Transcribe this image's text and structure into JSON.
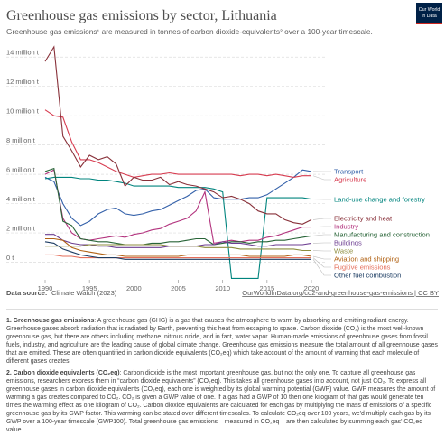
{
  "chart_data": {
    "type": "line",
    "title": "Greenhouse gas emissions by sector, Lithuania",
    "subtitle": "Greenhouse gas emissions¹ are measured in tonnes of carbon dioxide-equivalents² over a 100-year timescale.",
    "x": [
      1990,
      1991,
      1992,
      1993,
      1994,
      1995,
      1996,
      1997,
      1998,
      1999,
      2000,
      2001,
      2002,
      2003,
      2004,
      2005,
      2006,
      2007,
      2008,
      2009,
      2010,
      2011,
      2012,
      2013,
      2014,
      2015,
      2016,
      2017,
      2018,
      2019,
      2020
    ],
    "xlim": [
      1990,
      2020
    ],
    "xticks": [
      1990,
      1995,
      2000,
      2005,
      2010,
      2015,
      2020
    ],
    "ylim": [
      -1200000,
      15000000
    ],
    "yticks": [
      {
        "value": 0,
        "label": "0 t"
      },
      {
        "value": 2000000,
        "label": "2 million t"
      },
      {
        "value": 4000000,
        "label": "4 million t"
      },
      {
        "value": 6000000,
        "label": "6 million t"
      },
      {
        "value": 8000000,
        "label": "8 million t"
      },
      {
        "value": 10000000,
        "label": "10 million t"
      },
      {
        "value": 12000000,
        "label": "12 million t"
      },
      {
        "value": 14000000,
        "label": "14 million t"
      }
    ],
    "grid": true,
    "series": [
      {
        "name": "Transport",
        "color": "#3360a9",
        "values": [
          5800000,
          5500000,
          4000000,
          3000000,
          2500000,
          2800000,
          3300000,
          3600000,
          3700000,
          3300000,
          3200000,
          3300000,
          3500000,
          3600000,
          3900000,
          4200000,
          4500000,
          4900000,
          5000000,
          4400000,
          4300000,
          4300000,
          4300000,
          4400000,
          4400000,
          4600000,
          5000000,
          5400000,
          5800000,
          6300000,
          6200000
        ]
      },
      {
        "name": "Agriculture",
        "color": "#d73c50",
        "values": [
          10400000,
          10000000,
          9900000,
          8200000,
          7000000,
          7000000,
          6800000,
          6500000,
          6200000,
          6000000,
          5800000,
          5900000,
          6000000,
          6000000,
          6100000,
          6000000,
          6000000,
          6000000,
          6000000,
          6000000,
          6000000,
          6000000,
          5900000,
          6000000,
          6000000,
          5900000,
          6000000,
          5900000,
          5800000,
          5900000,
          5900000
        ]
      },
      {
        "name": "Land-use change and forestry",
        "color": "#00847e",
        "values": [
          5700000,
          5800000,
          5800000,
          5800000,
          5700000,
          5700000,
          5600000,
          5600000,
          5500000,
          5400000,
          5200000,
          5200000,
          5200000,
          5200000,
          5200000,
          5100000,
          5100000,
          5100000,
          5100000,
          5000000,
          4800000,
          -1100000,
          -1100000,
          -1100000,
          -1100000,
          4400000,
          4400000,
          4400000,
          4400000,
          4400000,
          4300000
        ]
      },
      {
        "name": "Electricity and heat",
        "color": "#883039",
        "values": [
          13700000,
          14700000,
          8600000,
          7600000,
          6500000,
          7300000,
          7000000,
          7200000,
          6700000,
          5200000,
          5800000,
          5600000,
          5600000,
          5800000,
          5300000,
          5500000,
          5300000,
          5200000,
          5000000,
          4800000,
          4400000,
          4500000,
          4300000,
          4000000,
          3500000,
          3300000,
          3300000,
          2900000,
          2700000,
          2600000,
          2900000
        ]
      },
      {
        "name": "Industry",
        "color": "#b2327d",
        "values": [
          6000000,
          6300000,
          3000000,
          2000000,
          1600000,
          1500000,
          1600000,
          1700000,
          1800000,
          1700000,
          1900000,
          2000000,
          2200000,
          2300000,
          2600000,
          2800000,
          3000000,
          3500000,
          4800000,
          1300000,
          1400000,
          1500000,
          1400000,
          1500000,
          1500000,
          1700000,
          1800000,
          2000000,
          2200000,
          2400000,
          2400000
        ]
      },
      {
        "name": "Manufacturing and construction",
        "color": "#286437",
        "values": [
          6200000,
          6400000,
          2800000,
          2500000,
          1600000,
          1500000,
          1400000,
          1400000,
          1300000,
          1200000,
          1200000,
          1200000,
          1300000,
          1300000,
          1400000,
          1400000,
          1500000,
          1600000,
          1600000,
          1200000,
          1300000,
          1400000,
          1400000,
          1300000,
          1400000,
          1400000,
          1500000,
          1500000,
          1600000,
          1700000,
          1800000
        ]
      },
      {
        "name": "Buildings",
        "color": "#6d3e91",
        "values": [
          1900000,
          1900000,
          1500000,
          1300000,
          1200000,
          1200000,
          1100000,
          1100000,
          1000000,
          1000000,
          1000000,
          1000000,
          1000000,
          1000000,
          1100000,
          1100000,
          1100000,
          1100000,
          1200000,
          1200000,
          1400000,
          1300000,
          1300000,
          1200000,
          1100000,
          1100000,
          1200000,
          1200000,
          1200000,
          1200000,
          1300000
        ]
      },
      {
        "name": "Waste",
        "color": "#8c8c3c",
        "values": [
          1100000,
          1100000,
          1100000,
          1100000,
          1100000,
          1200000,
          1200000,
          1200000,
          1200000,
          1200000,
          1200000,
          1200000,
          1200000,
          1200000,
          1100000,
          1100000,
          1100000,
          1100000,
          1000000,
          1000000,
          1000000,
          1000000,
          900000,
          900000,
          900000,
          900000,
          900000,
          900000,
          900000,
          800000,
          800000
        ]
      },
      {
        "name": "Aviation and shipping",
        "color": "#b16214",
        "values": [
          1600000,
          1600000,
          1500000,
          1000000,
          800000,
          700000,
          600000,
          500000,
          500000,
          400000,
          400000,
          400000,
          400000,
          400000,
          400000,
          400000,
          500000,
          500000,
          500000,
          500000,
          500000,
          500000,
          500000,
          400000,
          400000,
          400000,
          400000,
          400000,
          500000,
          500000,
          400000
        ]
      },
      {
        "name": "Fugitive emissions",
        "color": "#e56e5a",
        "values": [
          500000,
          500000,
          400000,
          400000,
          300000,
          300000,
          300000,
          300000,
          300000,
          300000,
          300000,
          300000,
          300000,
          300000,
          300000,
          300000,
          300000,
          300000,
          300000,
          300000,
          300000,
          300000,
          300000,
          300000,
          300000,
          300000,
          300000,
          300000,
          300000,
          300000,
          300000
        ]
      },
      {
        "name": "Other fuel combustion",
        "color": "#1d3d63",
        "values": [
          1400000,
          1300000,
          900000,
          700000,
          500000,
          400000,
          300000,
          300000,
          300000,
          200000,
          200000,
          200000,
          200000,
          200000,
          200000,
          200000,
          200000,
          200000,
          200000,
          200000,
          200000,
          200000,
          200000,
          200000,
          200000,
          200000,
          200000,
          200000,
          200000,
          200000,
          200000
        ]
      }
    ]
  },
  "logo": {
    "line1": "Our World",
    "line2": "in Data"
  },
  "source": {
    "label": "Data source:",
    "text": "Climate Watch (2023)"
  },
  "link": "OurWorldInData.org/co2-and-greenhouse-gas-emissions | CC BY",
  "notes": [
    {
      "heading": "1. Greenhouse gas emissions",
      "text": ": A greenhouse gas (GHG) is a gas that causes the atmosphere to warm by absorbing and emitting radiant energy. Greenhouse gases absorb radiation that is radiated by Earth, preventing this heat from escaping to space. Carbon dioxide (CO₂) is the most well-known greenhouse gas, but there are others including methane, nitrous oxide, and in fact, water vapor. Human-made emissions of greenhouse gases from fossil fuels, industry, and agriculture are the leading cause of global climate change. Greenhouse gas emissions measure the total amount of all greenhouse gases that are emitted. These are often quantified in carbon dioxide equivalents (CO₂eq) which take account of the amount of warming that each molecule of different gases creates."
    },
    {
      "heading": "2. Carbon dioxide equivalents (CO₂eq)",
      "text": ": Carbon dioxide is the most important greenhouse gas, but not the only one. To capture all greenhouse gas emissions, researchers express them in “carbon dioxide equivalents” (CO₂eq). This takes all greenhouse gases into account, not just CO₂. To express all greenhouse gases in carbon dioxide equivalents (CO₂eq), each one is weighted by its global warming potential (GWP) value. GWP measures the amount of warming a gas creates compared to CO₂. CO₂ is given a GWP value of one. If a gas had a GWP of 10 then one kilogram of that gas would generate ten times the warming effect as one kilogram of CO₂. Carbon dioxide equivalents are calculated for each gas by multiplying the mass of emissions of a specific greenhouse gas by its GWP factor. This warming can be stated over different timescales. To calculate CO₂eq over 100 years, we'd multiply each gas by its GWP over a 100-year timescale (GWP100). Total greenhouse gas emissions – measured in CO₂eq – are then calculated by summing each gas' CO₂eq value."
    }
  ]
}
